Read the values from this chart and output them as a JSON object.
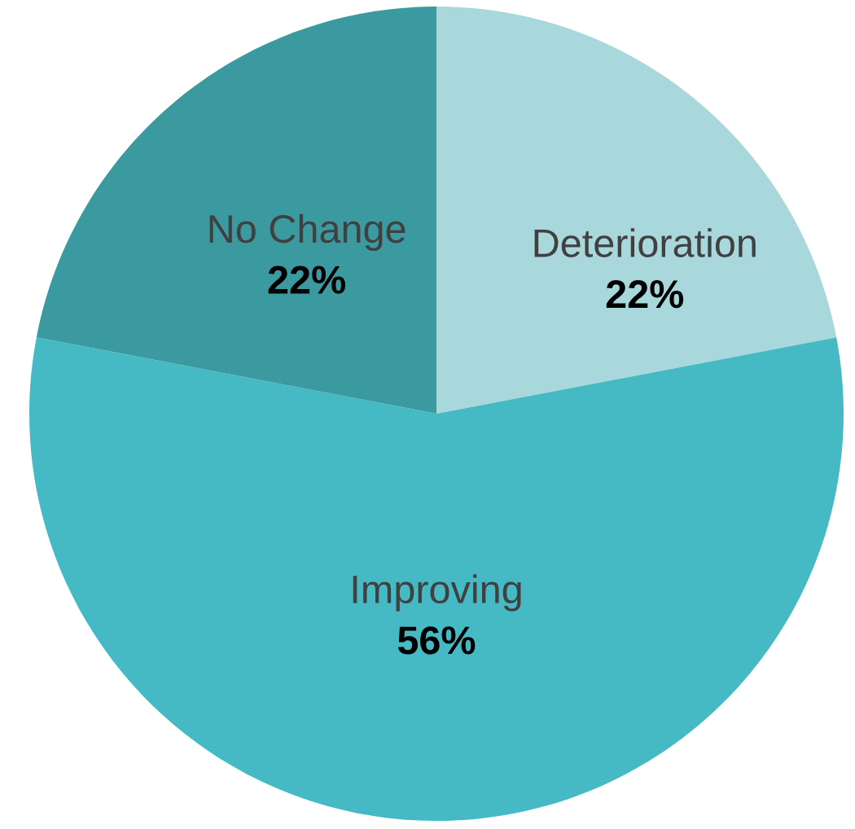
{
  "chart_data": {
    "type": "pie",
    "categories": [
      "Deterioration",
      "Improving",
      "No Change"
    ],
    "values": [
      22,
      56,
      22
    ],
    "colors": [
      "#a8d8dc",
      "#45bac5",
      "#3a9aa0"
    ],
    "value_labels": [
      "22%",
      "56%",
      "22%"
    ]
  }
}
